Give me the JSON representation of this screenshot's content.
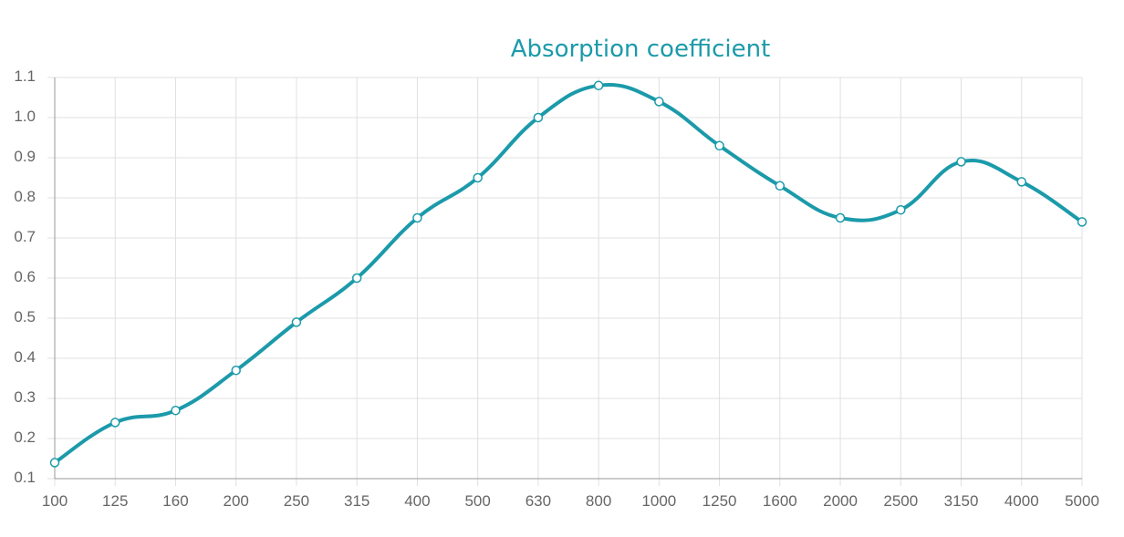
{
  "chart_data": {
    "type": "line",
    "title": "Absorption coefficient",
    "xlabel": "",
    "ylabel": "",
    "categories": [
      "100",
      "125",
      "160",
      "200",
      "250",
      "315",
      "400",
      "500",
      "630",
      "800",
      "1000",
      "1250",
      "1600",
      "2000",
      "2500",
      "3150",
      "4000",
      "5000"
    ],
    "series": [
      {
        "name": "",
        "values": [
          0.14,
          0.24,
          0.27,
          0.37,
          0.49,
          0.6,
          0.75,
          0.85,
          1.0,
          1.08,
          1.04,
          0.93,
          0.83,
          0.75,
          0.77,
          0.89,
          0.84,
          0.74
        ]
      }
    ],
    "ylim": [
      0.1,
      1.1
    ],
    "yticks": [
      "0.1",
      "0.2",
      "0.3",
      "0.4",
      "0.5",
      "0.6",
      "0.7",
      "0.8",
      "0.9",
      "1.0",
      "1.1"
    ],
    "grid": true,
    "legend": "none",
    "colors": {
      "line": "#1b9aaa",
      "title": "#1b9aaa",
      "grid": "#e0e0e0",
      "axis": "#999999",
      "point_fill": "#ffffff"
    }
  }
}
